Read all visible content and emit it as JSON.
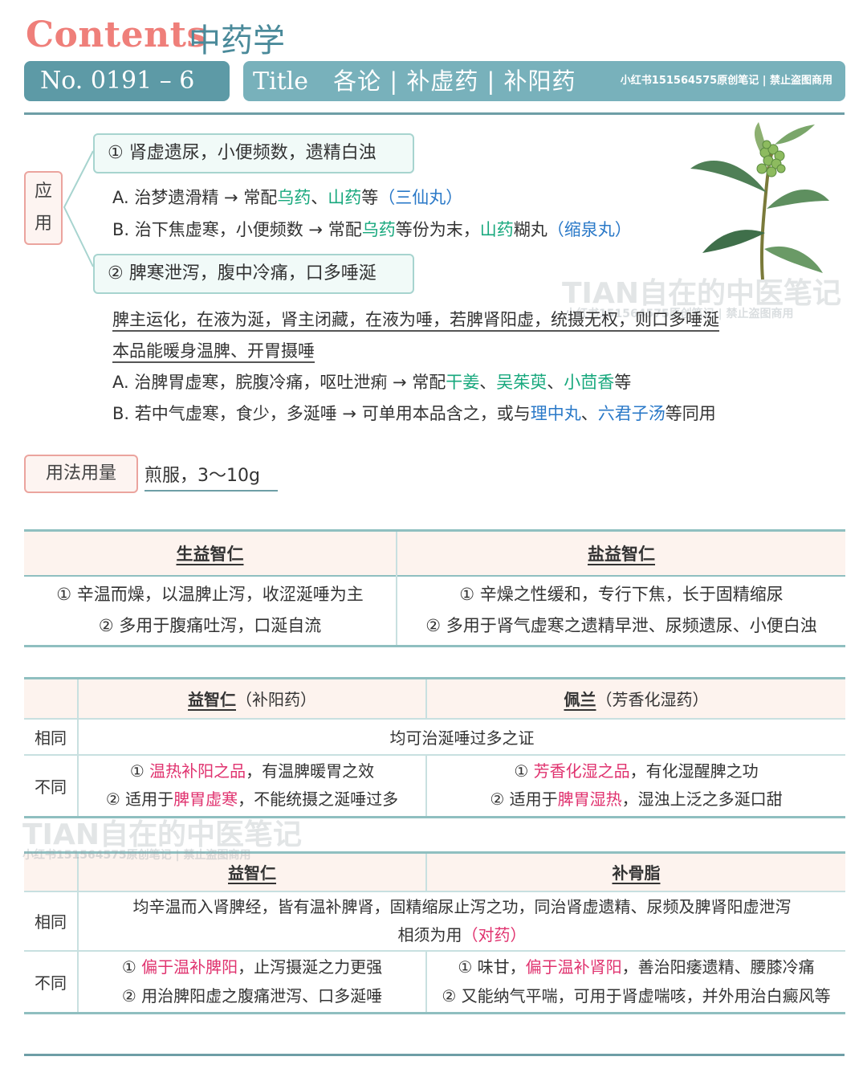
{
  "header": {
    "contents": "Contents",
    "subject": "中药学",
    "number": "No. 0191 – 6",
    "title_word": "Title",
    "title": "各论 | 补虚药 | 补阳药",
    "copyright": "小红书151564575原创笔记 | 禁止盗图商用"
  },
  "application": {
    "label_1": "应",
    "label_2": "用",
    "point1": "① 肾虚遗尿，小便频数，遗精白浊",
    "point1_a": {
      "prefix": "A. 治梦遗滑精 → 常配",
      "herb1": "乌药",
      "sep": "、",
      "herb2": "山药",
      "mid": "等",
      "formula": "（三仙丸）"
    },
    "point1_b": {
      "prefix": "B. 治下焦虚寒，小便频数 → 常配",
      "herb1": "乌药",
      "mid": "等份为末，",
      "herb2": "山药",
      "mid2": "糊丸",
      "formula": "（缩泉丸）"
    },
    "point2": "② 脾寒泄泻，腹中冷痛，口多唾涎",
    "explain_1": "脾主运化，在液为涎，肾主闭藏，在液为唾，若脾肾阳虚，统摄无权，则口多唾涎",
    "explain_2": "本品能暖身温脾、开胃摄唾",
    "point2_a": {
      "prefix": "A. 治脾胃虚寒，脘腹冷痛，呕吐泄痢 → 常配",
      "herb1": "干姜",
      "sep1": "、",
      "herb2": "吴茱萸",
      "sep2": "、",
      "herb3": "小茴香",
      "suffix": "等"
    },
    "point2_b": {
      "prefix": "B. 若中气虚寒，食少，多涎唾 → 可单用本品含之，或与",
      "formula1": "理中丸",
      "sep": "、",
      "formula2": "六君子汤",
      "suffix": "等同用"
    }
  },
  "dosage": {
    "label": "用法用量",
    "value": "煎服，3～10g"
  },
  "table1": {
    "col1_header": "生益智仁",
    "col2_header": "盐益智仁",
    "col1_line1": "① 辛温而燥，以温脾止泻，收涩涎唾为主",
    "col1_line2": "② 多用于腹痛吐泻，口涎自流",
    "col2_line1": "① 辛燥之性缓和，专行下焦，长于固精缩尿",
    "col2_line2": "② 多用于肾气虚寒之遗精早泄、尿频遗尿、小便白浊"
  },
  "table2": {
    "col1_header": "益智仁",
    "col1_note": "（补阳药）",
    "col2_header": "佩兰",
    "col2_note": "（芳香化湿药）",
    "same_label": "相同",
    "same_text": "均可治涎唾过多之证",
    "diff_label": "不同",
    "col1_d1_pre": "① ",
    "col1_d1_hl": "温热补阳之品",
    "col1_d1_post": "，有温脾暖胃之效",
    "col1_d2_pre": "② 适用于",
    "col1_d2_hl": "脾胃虚寒",
    "col1_d2_post": "，不能统摄之涎唾过多",
    "col2_d1_pre": "① ",
    "col2_d1_hl": "芳香化湿之品",
    "col2_d1_post": "，有化湿醒脾之功",
    "col2_d2_pre": "② 适用于",
    "col2_d2_hl": "脾胃湿热",
    "col2_d2_post": "，湿浊上泛之多涎口甜"
  },
  "table3": {
    "col1_header": "益智仁",
    "col2_header": "补骨脂",
    "same_label": "相同",
    "same_line1": "均辛温而入肾脾经，皆有温补脾肾，固精缩尿止泻之功，同治肾虚遗精、尿频及脾肾阳虚泄泻",
    "same_line2_pre": "相须为用",
    "same_line2_hl": "（对药）",
    "diff_label": "不同",
    "col1_d1_pre": "① ",
    "col1_d1_hl": "偏于温补脾阳",
    "col1_d1_post": "，止泻摄涎之力更强",
    "col1_d2": "② 用治脾阳虚之腹痛泄泻、口多涎唾",
    "col2_d1_pre": "① 味甘，",
    "col2_d1_hl": "偏于温补肾阳",
    "col2_d1_post": "，善治阳痿遗精、腰膝冷痛",
    "col2_d2": "② 又能纳气平喘，可用于肾虚喘咳，并外用治白癜风等"
  },
  "watermark": {
    "main": "TIAN自在的中医笔记",
    "sub": "小红书151564575原创笔记 | 禁止盗图商用"
  },
  "colors": {
    "teal": "#5d9aa6",
    "teal_light": "#78b1bb",
    "coral": "#ef7f7a",
    "green_herb": "#17a87d",
    "blue_formula": "#2a79c8",
    "pink_highlight": "#e0336f"
  }
}
